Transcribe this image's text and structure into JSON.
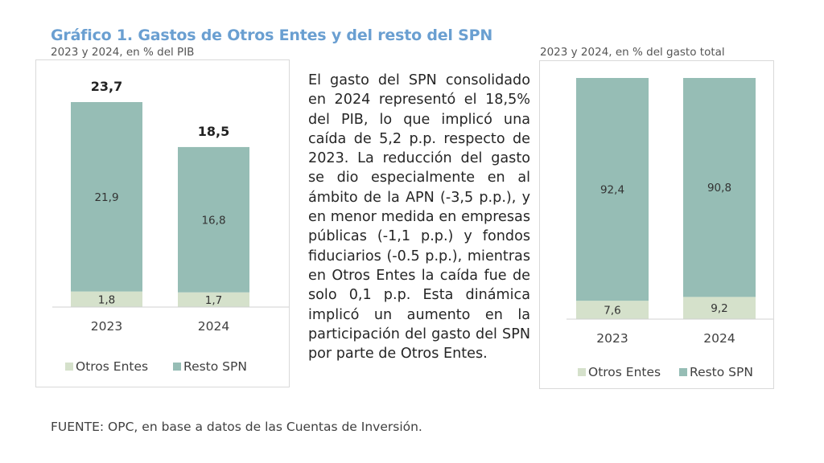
{
  "title": "Gráfico 1. Gastos de Otros Entes y del resto del SPN",
  "paragraph": "El gasto del SPN consolidado en 2024 representó el 18,5% del PIB, lo que implicó una caída de 5,2 p.p. respecto de 2023. La reducción del gasto se dio especialmente en al ámbito de la APN (-3,5 p.p.), y en menor medida en empresas públicas (-1,1 p.p.) y fondos fiduciarios (-0.5 p.p.), mientras en Otros Entes la caída fue de solo 0,1 p.p. Esta dinámica implicó un aumento en la participación del gasto del SPN por parte de Otros Entes.",
  "footer": "FUENTE: OPC, en base a datos de las Cuentas de Inversión.",
  "colors": {
    "otros_entes": "#d5e1cb",
    "resto_spn": "#96bdb5",
    "title": "#6a9fd1"
  },
  "chart_data": [
    {
      "type": "bar",
      "stacked": true,
      "subtitle": "2023 y 2024, en % del PIB",
      "categories": [
        "2023",
        "2024"
      ],
      "series": [
        {
          "name": "Otros Entes",
          "values": [
            1.8,
            1.7
          ],
          "labels": [
            "1,8",
            "1,7"
          ]
        },
        {
          "name": "Resto SPN",
          "values": [
            21.9,
            16.8
          ],
          "labels": [
            "21,9",
            "16,8"
          ]
        }
      ],
      "totals": [
        23.7,
        18.5
      ],
      "total_labels": [
        "23,7",
        "18,5"
      ],
      "ylim": [
        0,
        25
      ],
      "legend": "bottom",
      "grid": false
    },
    {
      "type": "bar",
      "stacked": true,
      "subtitle": "2023 y 2024, en % del gasto total",
      "categories": [
        "2023",
        "2024"
      ],
      "series": [
        {
          "name": "Otros Entes",
          "values": [
            7.6,
            9.2
          ],
          "labels": [
            "7,6",
            "9,2"
          ]
        },
        {
          "name": "Resto SPN",
          "values": [
            92.4,
            90.8
          ],
          "labels": [
            "92,4",
            "90,8"
          ]
        }
      ],
      "ylim": [
        0,
        100
      ],
      "legend": "bottom",
      "grid": false
    }
  ]
}
